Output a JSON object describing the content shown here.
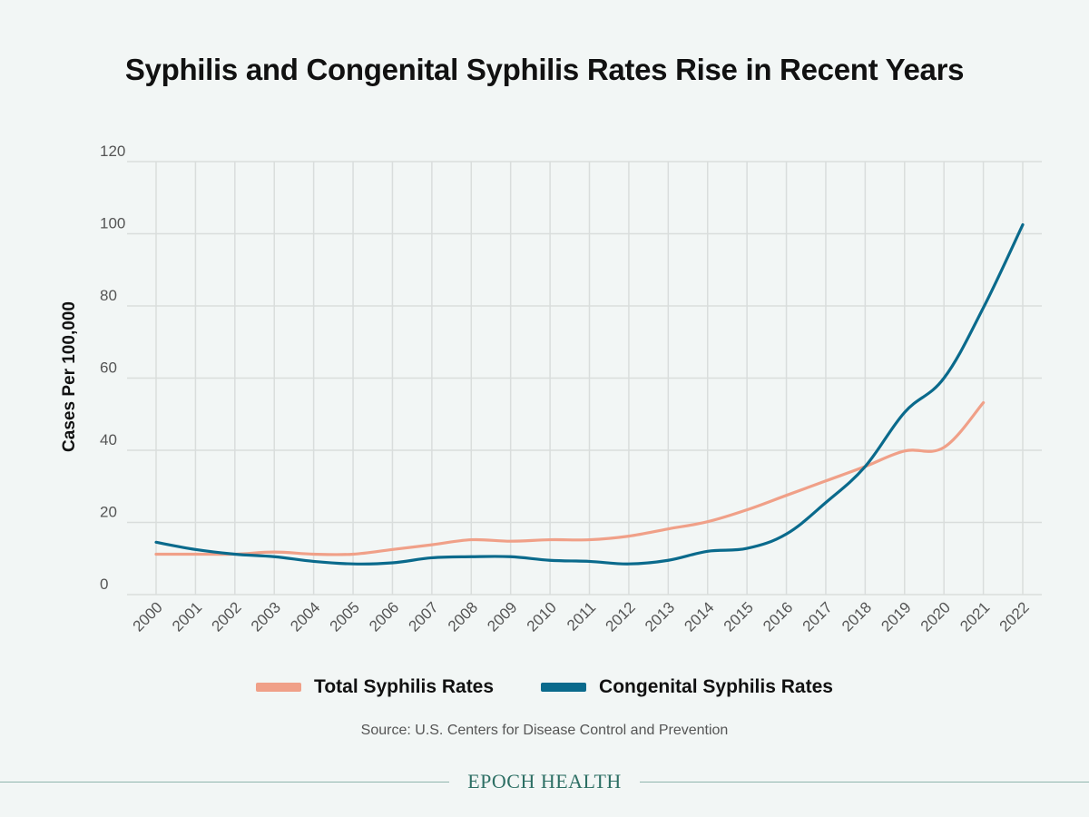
{
  "chart_data": {
    "type": "line",
    "title": "Syphilis and Congenital Syphilis Rates Rise in Recent Years",
    "ylabel": "Cases Per 100,000",
    "xlabel": "",
    "ylim": [
      0,
      120
    ],
    "yticks": [
      0,
      20,
      40,
      60,
      80,
      100,
      120
    ],
    "grid": true,
    "categories": [
      "2000",
      "2001",
      "2002",
      "2003",
      "2004",
      "2005",
      "2006",
      "2007",
      "2008",
      "2009",
      "2010",
      "2011",
      "2012",
      "2013",
      "2014",
      "2015",
      "2016",
      "2017",
      "2018",
      "2019",
      "2020",
      "2021",
      "2022"
    ],
    "series": [
      {
        "name": "Total Syphilis Rates",
        "color": "#f0a088",
        "values": [
          11.2,
          11.2,
          11.2,
          11.8,
          11.2,
          11.2,
          12.5,
          13.8,
          15.2,
          14.8,
          15.2,
          15.2,
          16.2,
          18.2,
          20.2,
          23.5,
          27.5,
          31.5,
          35.5,
          39.8,
          40.8,
          53.2,
          null
        ]
      },
      {
        "name": "Congenital Syphilis Rates",
        "color": "#0a6a8c",
        "values": [
          14.5,
          12.5,
          11.2,
          10.5,
          9.2,
          8.5,
          8.8,
          10.2,
          10.5,
          10.5,
          9.5,
          9.2,
          8.5,
          9.5,
          12.0,
          12.8,
          16.8,
          25.5,
          35.5,
          50.5,
          60.0,
          79.5,
          102.5
        ]
      }
    ],
    "legend": "bottom-center"
  },
  "source": "Source: U.S. Centers for Disease Control and Prevention",
  "brand": "EPOCH HEALTH"
}
